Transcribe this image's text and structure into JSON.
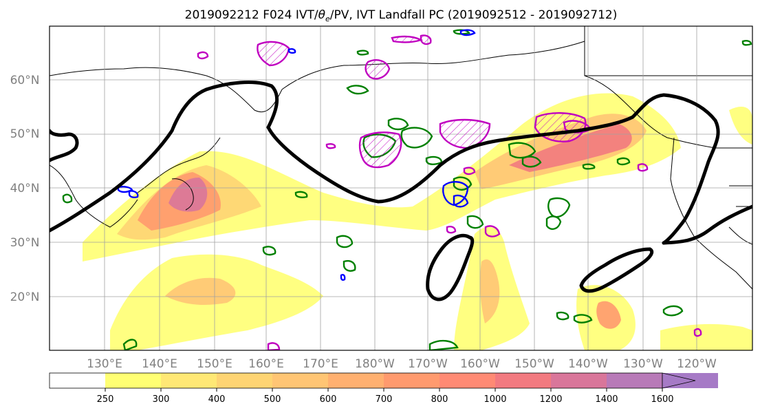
{
  "title": {
    "prefix": "2019092212 F024 IVT/",
    "theta": "θ",
    "theta_sub": "e",
    "suffix": "/PV, IVT Landfall PC (2019092512 - 2019092712)"
  },
  "map": {
    "latitude_labels": [
      "60°N",
      "50°N",
      "40°N",
      "30°N",
      "20°N"
    ],
    "longitude_labels": [
      "130°E",
      "140°E",
      "150°E",
      "160°E",
      "170°E",
      "180°W",
      "170°W",
      "160°W",
      "150°W",
      "140°W",
      "130°W",
      "120°W"
    ],
    "colors": {
      "ocean": "#ffffff",
      "coastline": "#000000",
      "gridline": "#a0a0a0",
      "jet_contour": "#000000",
      "theta_e_contour": "#008000",
      "pv_contour": "#c000c0",
      "pv_low_contour": "#0000ff"
    }
  },
  "colorbar": {
    "ticks": [
      "250",
      "300",
      "400",
      "500",
      "600",
      "700",
      "800",
      "1000",
      "1200",
      "1400",
      "1600"
    ],
    "colors": [
      "#ffffff",
      "#ffff73",
      "#ffe875",
      "#fed473",
      "#ffc574",
      "#ffb070",
      "#ff9a6e",
      "#ff8a74",
      "#f27a80",
      "#d9769a",
      "#b87ab8",
      "#a67ac6"
    ]
  }
}
